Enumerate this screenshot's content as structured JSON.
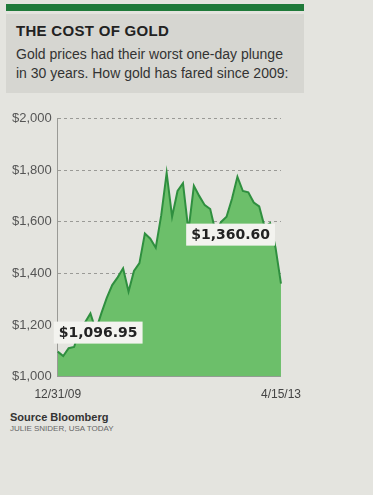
{
  "chart_data": {
    "type": "area",
    "title": "THE COST OF GOLD",
    "subtitle": "Gold prices had their worst one-day plunge in 30 years. How gold has fared since 2009:",
    "source": "Source Bloomberg",
    "credit": "JULIE SNIDER, USA TODAY",
    "categories": [
      "12/31/09",
      null,
      null,
      null,
      null,
      null,
      null,
      null,
      null,
      null,
      null,
      null,
      null,
      null,
      null,
      null,
      null,
      null,
      null,
      null,
      null,
      null,
      null,
      null,
      null,
      null,
      null,
      null,
      null,
      null,
      null,
      null,
      null,
      null,
      null,
      null,
      null,
      null,
      null,
      null,
      null,
      "4/15/13"
    ],
    "values": [
      1096.95,
      1080,
      1110,
      1115,
      1180,
      1210,
      1245,
      1180,
      1245,
      1305,
      1355,
      1385,
      1420,
      1330,
      1410,
      1440,
      1555,
      1535,
      1500,
      1625,
      1790,
      1620,
      1720,
      1750,
      1565,
      1740,
      1700,
      1665,
      1650,
      1560,
      1600,
      1620,
      1690,
      1775,
      1720,
      1715,
      1675,
      1660,
      1580,
      1595,
      1500,
      1360.6
    ],
    "color": "#6cbf6a",
    "ylim": [
      1000,
      2000
    ],
    "yticks": [
      {
        "value": 1000,
        "label": "$1,000"
      },
      {
        "value": 1200,
        "label": "$1,200"
      },
      {
        "value": 1400,
        "label": "$1,400"
      },
      {
        "value": 1600,
        "label": "$1,600"
      },
      {
        "value": 1800,
        "label": "$1,800"
      },
      {
        "value": 2000,
        "label": "$2,000"
      }
    ],
    "grid": true,
    "annotations": [
      {
        "text": "$1,096.95",
        "x": "12/31/09",
        "y": 1096.95
      },
      {
        "text": "$1,360.60",
        "x": "4/15/13",
        "y": 1360.6
      }
    ]
  }
}
